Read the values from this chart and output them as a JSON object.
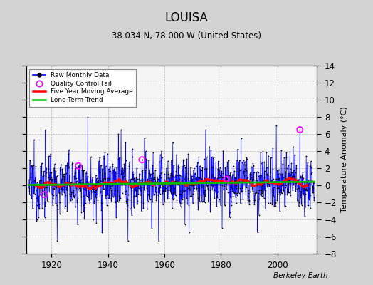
{
  "title": "LOUISA",
  "subtitle": "38.034 N, 78.000 W (United States)",
  "ylabel": "Temperature Anomaly (°C)",
  "watermark": "Berkeley Earth",
  "year_start": 1912,
  "year_end": 2013,
  "ylim": [
    -8,
    14
  ],
  "yticks": [
    -8,
    -6,
    -4,
    -2,
    0,
    2,
    4,
    6,
    8,
    10,
    12,
    14
  ],
  "xticks": [
    1920,
    1940,
    1960,
    1980,
    2000
  ],
  "bg_color": "#d3d3d3",
  "plot_bg_color": "#f5f5f5",
  "raw_color": "#0000ff",
  "qc_color": "#ff00ff",
  "moving_avg_color": "#ff0000",
  "trend_color": "#00bb00",
  "grid_color": "#aaaaaa",
  "seed": 12345,
  "n_months": 1212
}
